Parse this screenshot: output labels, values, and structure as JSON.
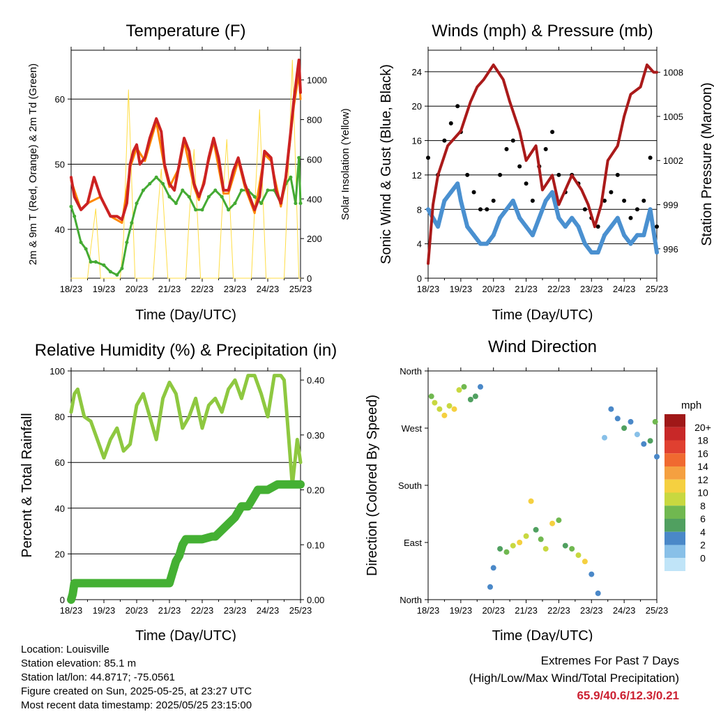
{
  "chart_data": [
    {
      "type": "line",
      "title": "Temperature (F)",
      "xlabel": "Time (Day/UTC)",
      "ylabel": "2m & 9m T (Red, Orange) & 2m Td (Green)",
      "y2label": "Solar Insolation (Yellow)",
      "x_ticks": [
        "18/23",
        "19/23",
        "20/23",
        "21/23",
        "22/23",
        "23/23",
        "24/23",
        "25/23"
      ],
      "ylim": [
        32.5,
        67.5
      ],
      "y_ticks": [
        40,
        50,
        60
      ],
      "y2lim": [
        0,
        1150
      ],
      "y2_ticks": [
        0,
        200,
        400,
        600,
        800,
        1000
      ],
      "grid": true,
      "series": [
        {
          "color": "#cc2222",
          "axis": "left",
          "x": [
            0,
            0.1,
            0.3,
            0.5,
            0.7,
            0.9,
            1.0,
            1.2,
            1.4,
            1.55,
            1.7,
            1.8,
            1.9,
            2.0,
            2.1,
            2.25,
            2.4,
            2.6,
            2.75,
            2.85,
            3.0,
            3.15,
            3.3,
            3.45,
            3.6,
            3.75,
            3.9,
            4.05,
            4.2,
            4.35,
            4.5,
            4.65,
            4.8,
            4.95,
            5.1,
            5.3,
            5.45,
            5.6,
            5.75,
            5.9,
            6.1,
            6.25,
            6.4,
            6.55,
            6.7,
            6.8,
            6.9,
            6.95,
            7.0
          ],
          "y": [
            48,
            45,
            43,
            44,
            48,
            45,
            44,
            42,
            42,
            41.5,
            44,
            50,
            52,
            53,
            50,
            51,
            54,
            57,
            55,
            50,
            47,
            46,
            50,
            54,
            52,
            47,
            45,
            47,
            51,
            54,
            51,
            46,
            46,
            49,
            51,
            47,
            45,
            43,
            45,
            52,
            51,
            46,
            44,
            48,
            55,
            60,
            64,
            66,
            61
          ]
        },
        {
          "color": "#ff8800",
          "axis": "left",
          "x": [
            0,
            0.3,
            0.5,
            0.9,
            1.2,
            1.55,
            1.8,
            2.0,
            2.25,
            2.6,
            2.85,
            3.0,
            3.3,
            3.45,
            3.75,
            3.9,
            4.2,
            4.35,
            4.65,
            4.8,
            5.1,
            5.3,
            5.6,
            5.9,
            6.1,
            6.4,
            6.55,
            6.8,
            6.95,
            7.0
          ],
          "y": [
            47.5,
            43,
            44,
            45,
            42,
            41,
            49.5,
            52.5,
            50.5,
            56.5,
            49.5,
            46.5,
            49.5,
            53.5,
            46.5,
            44.5,
            50.5,
            53.5,
            45.5,
            45.5,
            50.5,
            46.5,
            42.5,
            51.5,
            50.5,
            43.5,
            47.5,
            59,
            64,
            60
          ]
        },
        {
          "color": "#44aa33",
          "axis": "left",
          "x": [
            0,
            0.1,
            0.3,
            0.45,
            0.6,
            0.75,
            1.0,
            1.2,
            1.4,
            1.55,
            1.7,
            1.85,
            2.0,
            2.2,
            2.4,
            2.6,
            2.8,
            3.0,
            3.2,
            3.4,
            3.6,
            3.8,
            4.0,
            4.2,
            4.4,
            4.6,
            4.8,
            5.0,
            5.2,
            5.4,
            5.6,
            5.8,
            6.0,
            6.2,
            6.4,
            6.55,
            6.7,
            6.85,
            6.95,
            7.0
          ],
          "y": [
            43.5,
            42,
            38,
            37,
            35,
            35,
            34.5,
            33.5,
            33,
            34,
            38,
            41,
            44,
            46,
            47,
            48,
            47,
            45,
            44,
            46,
            45,
            43,
            43,
            45,
            46,
            45,
            43,
            44,
            46,
            46,
            45,
            44,
            46,
            46,
            44,
            47,
            48,
            44,
            51,
            44
          ]
        },
        {
          "color": "#ffdd44",
          "axis": "right",
          "x": [
            0,
            0.5,
            0.6,
            0.75,
            0.9,
            1.5,
            1.6,
            1.75,
            1.95,
            2.5,
            2.6,
            2.75,
            2.95,
            3.5,
            3.6,
            3.75,
            3.95,
            4.5,
            4.6,
            4.75,
            4.95,
            5.5,
            5.6,
            5.75,
            5.95,
            6.5,
            6.6,
            6.75,
            6.95,
            7.0
          ],
          "y": [
            0,
            0,
            150,
            350,
            0,
            0,
            200,
            950,
            0,
            0,
            250,
            550,
            0,
            0,
            300,
            650,
            0,
            0,
            320,
            700,
            0,
            0,
            350,
            850,
            0,
            0,
            400,
            1100,
            0,
            0
          ]
        }
      ]
    },
    {
      "type": "scatter",
      "title": "Winds (mph) & Pressure (mb)",
      "xlabel": "Time (Day/UTC)",
      "ylabel": "Sonic Wind & Gust (Blue, Black)",
      "y2label": "Station Pressure (Maroon)",
      "x_ticks": [
        "18/23",
        "19/23",
        "20/23",
        "21/23",
        "22/23",
        "23/23",
        "24/23",
        "25/23"
      ],
      "ylim": [
        0,
        26.5
      ],
      "y_ticks": [
        0,
        4,
        8,
        12,
        16,
        20,
        24
      ],
      "y2lim": [
        994,
        1009.5
      ],
      "y2_ticks": [
        996,
        999,
        1002,
        1005,
        1008
      ],
      "grid": true,
      "series": [
        {
          "color": "#000000",
          "style": "points",
          "x": [
            0,
            0.3,
            0.5,
            0.7,
            0.9,
            1.0,
            1.2,
            1.4,
            1.6,
            1.8,
            2.0,
            2.2,
            2.4,
            2.6,
            2.8,
            3.0,
            3.2,
            3.4,
            3.6,
            3.8,
            4.0,
            4.2,
            4.4,
            4.6,
            4.8,
            5.0,
            5.2,
            5.4,
            5.6,
            5.8,
            6.0,
            6.2,
            6.4,
            6.6,
            6.8,
            7.0
          ],
          "y": [
            14,
            12,
            16,
            18,
            20,
            17,
            12,
            10,
            8,
            8,
            9,
            12,
            15,
            16,
            13,
            11,
            9,
            13,
            15,
            17,
            12,
            10,
            12,
            11,
            8,
            7,
            6,
            9,
            10,
            12,
            9,
            7,
            8,
            9,
            14,
            6
          ]
        },
        {
          "color": "#4a90d0",
          "style": "points",
          "x": [
            0,
            0.3,
            0.5,
            0.7,
            0.9,
            1.0,
            1.2,
            1.4,
            1.6,
            1.8,
            2.0,
            2.2,
            2.4,
            2.6,
            2.8,
            3.0,
            3.2,
            3.4,
            3.6,
            3.8,
            4.0,
            4.2,
            4.4,
            4.6,
            4.8,
            5.0,
            5.2,
            5.4,
            5.6,
            5.8,
            6.0,
            6.2,
            6.4,
            6.6,
            6.8,
            7.0
          ],
          "y": [
            8,
            6,
            9,
            10,
            11,
            9,
            6,
            5,
            4,
            4,
            5,
            7,
            8,
            9,
            7,
            6,
            5,
            7,
            9,
            10,
            7,
            6,
            7,
            6,
            4,
            3,
            3,
            5,
            6,
            7,
            5,
            4,
            5,
            5,
            8,
            3
          ]
        },
        {
          "color": "#aa1a1a",
          "style": "line",
          "axis": "right",
          "x": [
            0,
            0.15,
            0.3,
            0.6,
            1.0,
            1.3,
            1.5,
            1.7,
            2.0,
            2.3,
            2.5,
            2.8,
            3.0,
            3.3,
            3.5,
            3.8,
            4.0,
            4.4,
            4.7,
            4.9,
            5.1,
            5.3,
            5.5,
            5.8,
            6.0,
            6.2,
            6.5,
            6.7,
            6.9,
            7.0
          ],
          "y": [
            995,
            999,
            1001,
            1003,
            1004,
            1006,
            1007,
            1007.5,
            1008.5,
            1007.5,
            1006,
            1004,
            1002,
            1003,
            1000,
            1001,
            999,
            1001,
            1000,
            999,
            997.5,
            999,
            1002,
            1003,
            1005,
            1006.5,
            1007,
            1008.5,
            1008,
            1008
          ]
        }
      ]
    },
    {
      "type": "line",
      "title": "Relative Humidity (%) & Precipitation (in)",
      "xlabel": "Time (Day/UTC)",
      "ylabel": "Percent & Total Rainfall",
      "x_ticks": [
        "18/23",
        "19/23",
        "20/23",
        "21/23",
        "22/23",
        "23/23",
        "24/23",
        "25/23"
      ],
      "ylim": [
        0,
        100
      ],
      "y_ticks": [
        0,
        20,
        40,
        60,
        80,
        100
      ],
      "y2lim": [
        0,
        0.4166
      ],
      "y2_ticks": [
        "0.00",
        "0.10",
        "0.20",
        "0.30",
        "0.40"
      ],
      "grid": true,
      "series": [
        {
          "color": "#8ec840",
          "axis": "left",
          "x": [
            0,
            0.1,
            0.2,
            0.4,
            0.6,
            0.8,
            1.0,
            1.2,
            1.4,
            1.6,
            1.8,
            2.0,
            2.2,
            2.4,
            2.6,
            2.8,
            3.0,
            3.2,
            3.4,
            3.6,
            3.8,
            4.0,
            4.2,
            4.4,
            4.6,
            4.8,
            5.0,
            5.2,
            5.4,
            5.6,
            5.8,
            6.0,
            6.2,
            6.4,
            6.5,
            6.6,
            6.75,
            6.9,
            7.0
          ],
          "y": [
            82,
            90,
            92,
            80,
            78,
            70,
            62,
            70,
            75,
            65,
            68,
            85,
            90,
            80,
            70,
            88,
            95,
            90,
            75,
            80,
            88,
            75,
            85,
            88,
            82,
            92,
            96,
            88,
            98,
            98,
            90,
            80,
            98,
            98,
            96,
            78,
            50,
            70,
            60
          ]
        },
        {
          "color": "#44b033",
          "axis": "right",
          "x": [
            0,
            0.05,
            0.1,
            0.2,
            1.0,
            2.0,
            3.0,
            3.1,
            3.2,
            3.3,
            3.4,
            3.5,
            4.0,
            4.3,
            4.4,
            5.0,
            5.1,
            5.2,
            5.4,
            5.6,
            5.7,
            6.0,
            6.3,
            6.5,
            7.0
          ],
          "y": [
            0,
            0.01,
            0.03,
            0.03,
            0.03,
            0.03,
            0.03,
            0.05,
            0.07,
            0.08,
            0.1,
            0.11,
            0.11,
            0.115,
            0.115,
            0.15,
            0.16,
            0.17,
            0.17,
            0.19,
            0.2,
            0.2,
            0.21,
            0.21,
            0.21
          ]
        }
      ]
    },
    {
      "type": "scatter",
      "title": "Wind Direction",
      "xlabel": "Time (Day/UTC)",
      "ylabel": "Direction (Colored By Speed)",
      "x_ticks": [
        "18/23",
        "19/23",
        "20/23",
        "21/23",
        "22/23",
        "23/23",
        "24/23",
        "25/23"
      ],
      "y_ticks": [
        "North",
        "East",
        "South",
        "West",
        "North"
      ],
      "ylim": [
        0,
        360
      ],
      "colorbar_title": "mph",
      "colorbar_labels": [
        "20+",
        "18",
        "16",
        "14",
        "12",
        "10",
        "8",
        "6",
        "4",
        "2",
        "0"
      ],
      "colorbar_colors": [
        "#a01818",
        "#c82828",
        "#e04030",
        "#f06a30",
        "#f5a040",
        "#f5d040",
        "#c8d840",
        "#70b850",
        "#50a060",
        "#4a88c8",
        "#88c0e8",
        "#c0e4f8"
      ],
      "points": {
        "x": [
          0.1,
          0.2,
          0.35,
          0.5,
          0.65,
          0.8,
          0.95,
          1.1,
          1.3,
          1.45,
          1.6,
          1.9,
          2.0,
          2.2,
          2.4,
          2.6,
          2.8,
          3.0,
          3.15,
          3.3,
          3.45,
          3.6,
          3.8,
          4.0,
          4.2,
          4.4,
          4.6,
          4.8,
          5.0,
          5.2,
          5.4,
          5.6,
          5.8,
          6.0,
          6.2,
          6.4,
          6.6,
          6.8,
          6.95,
          7.0
        ],
        "y": [
          320,
          310,
          300,
          290,
          305,
          300,
          330,
          335,
          315,
          320,
          335,
          20,
          50,
          80,
          75,
          85,
          90,
          100,
          155,
          110,
          95,
          80,
          120,
          125,
          85,
          80,
          70,
          60,
          40,
          10,
          255,
          300,
          285,
          270,
          280,
          260,
          245,
          250,
          280,
          225
        ],
        "speed": [
          8,
          9,
          10,
          11,
          10,
          12,
          10,
          8,
          6,
          5,
          4,
          3,
          4,
          6,
          8,
          10,
          12,
          9,
          11,
          5,
          7,
          10,
          12,
          8,
          6,
          7,
          10,
          11,
          4,
          3,
          2,
          3,
          4,
          5,
          3,
          2,
          4,
          6,
          7,
          3
        ]
      }
    }
  ],
  "footer": {
    "location": "Location: Louisville",
    "elevation": "Station elevation: 85.1 m",
    "latlon": "Station lat/lon: 44.8717; -75.0561",
    "created": "Figure created on Sun, 2025-05-25, at 23:27 UTC",
    "recent": "Most recent data timestamp: 2025/05/25 23:15:00",
    "extremes_title": "Extremes For Past 7 Days",
    "extremes_subtitle": "(High/Low/Max Wind/Total Precipitation)",
    "extremes_values": "65.9/40.6/12.3/0.21"
  }
}
